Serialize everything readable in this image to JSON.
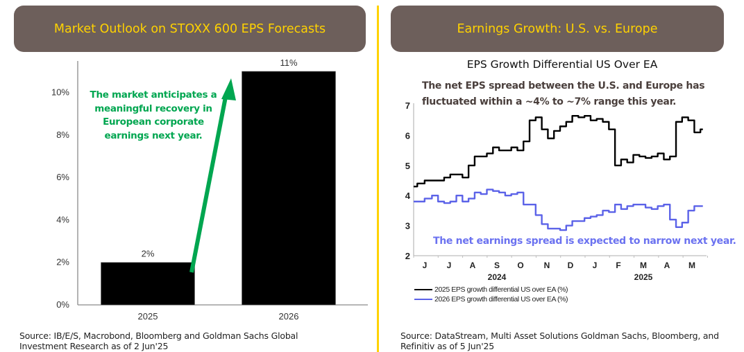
{
  "left_panel": {
    "banner_title": "Market Outlook on STOXX 600 EPS Forecasts",
    "annotation": "The market anticipates a meaningful recovery in European corporate earnings next year.",
    "source": "Source: IB/E/S, Macrobond, Bloomberg and Goldman Sachs Global Investment Research as of 2 Jun'25"
  },
  "right_panel": {
    "banner_title": "Earnings Growth: U.S. vs. Europe",
    "annotation_top": "The net EPS spread between the U.S. and Europe has fluctuated within a ~4% to ~7% range this year.",
    "annotation_bottom": "The net earnings spread is expected to narrow next year.",
    "source": "Source: DataStream, Multi Asset Solutions Goldman Sachs, Bloomberg, and Refinitiv as of 5 Jun'25"
  },
  "colors": {
    "banner_bg": "#6d5f5b",
    "banner_text": "#ffd200",
    "divider": "#ffd200",
    "bar": "#000000",
    "arrow": "#00a650",
    "series_2025": "#000000",
    "series_2026": "#5b62e8"
  },
  "chart_data": [
    {
      "type": "bar",
      "title": "",
      "categories": [
        "2025",
        "2026"
      ],
      "values": [
        2,
        11
      ],
      "data_labels": [
        "2%",
        "11%"
      ],
      "xlabel": "",
      "ylabel": "",
      "ylim": [
        0,
        11
      ],
      "yticks": [
        0,
        2,
        4,
        6,
        8,
        10
      ],
      "ytick_labels": [
        "0%",
        "2%",
        "4%",
        "6%",
        "8%",
        "10%"
      ],
      "grid": false,
      "annotation_arrow": {
        "from": "2025",
        "to": "2026",
        "color": "#00a650"
      }
    },
    {
      "type": "line",
      "title": "EPS Growth Differential US Over EA",
      "xlabel": "",
      "ylabel": "",
      "ylim": [
        2,
        7
      ],
      "yticks": [
        2,
        3,
        4,
        5,
        6,
        7
      ],
      "xtick_labels": [
        "J",
        "J",
        "A",
        "S",
        "O",
        "N",
        "D",
        "J",
        "F",
        "M",
        "A",
        "M"
      ],
      "year_labels": [
        {
          "label": "2024",
          "under": "S"
        },
        {
          "label": "2025",
          "under": "M"
        }
      ],
      "x_range_months": [
        0,
        12
      ],
      "legend_position": "bottom-left",
      "grid": false,
      "series": [
        {
          "name": "2025 EPS growth differential US over EA (%)",
          "color": "#000000",
          "x_months": [
            0,
            0.15,
            0.45,
            0.75,
            1.0,
            1.25,
            1.5,
            1.75,
            2.0,
            2.25,
            2.5,
            2.75,
            3.0,
            3.25,
            3.5,
            3.75,
            4.0,
            4.25,
            4.5,
            4.75,
            5.0,
            5.25,
            5.5,
            5.75,
            6.0,
            6.25,
            6.5,
            6.75,
            7.0,
            7.25,
            7.5,
            7.75,
            8.0,
            8.25,
            8.5,
            8.75,
            9.0,
            9.25,
            9.5,
            9.75,
            10.0,
            10.25,
            10.5,
            10.75,
            11.0,
            11.25,
            11.5,
            11.75
          ],
          "values": [
            4.3,
            4.4,
            4.5,
            4.5,
            4.5,
            4.6,
            4.7,
            4.7,
            4.6,
            5.0,
            5.3,
            5.3,
            5.4,
            5.6,
            5.5,
            5.5,
            5.6,
            5.5,
            5.8,
            6.5,
            6.6,
            6.2,
            5.9,
            6.15,
            6.3,
            6.45,
            6.65,
            6.6,
            6.65,
            6.5,
            6.55,
            6.45,
            6.2,
            5.0,
            5.2,
            5.1,
            5.35,
            5.3,
            5.25,
            5.3,
            5.4,
            5.2,
            5.3,
            6.45,
            6.6,
            6.5,
            6.1,
            6.2
          ]
        },
        {
          "name": "2026 EPS growth differential US over EA (%)",
          "color": "#5b62e8",
          "x_months": [
            0,
            0.15,
            0.45,
            0.75,
            1.0,
            1.25,
            1.5,
            1.75,
            2.0,
            2.25,
            2.5,
            2.75,
            3.0,
            3.25,
            3.5,
            3.75,
            4.0,
            4.25,
            4.5,
            4.75,
            5.0,
            5.25,
            5.5,
            5.75,
            6.0,
            6.25,
            6.5,
            6.75,
            7.0,
            7.25,
            7.5,
            7.75,
            8.0,
            8.25,
            8.5,
            8.75,
            9.0,
            9.25,
            9.5,
            9.75,
            10.0,
            10.25,
            10.5,
            10.75,
            11.0,
            11.25,
            11.5,
            11.75
          ],
          "values": [
            3.8,
            3.8,
            3.9,
            4.0,
            3.8,
            3.75,
            3.8,
            4.0,
            3.8,
            3.9,
            4.1,
            4.05,
            4.2,
            4.15,
            4.1,
            4.0,
            4.05,
            4.1,
            3.7,
            3.7,
            3.35,
            3.05,
            2.9,
            2.9,
            2.85,
            3.0,
            3.15,
            3.15,
            3.25,
            3.3,
            3.35,
            3.5,
            3.45,
            3.7,
            3.55,
            3.65,
            3.7,
            3.7,
            3.6,
            3.55,
            3.65,
            3.7,
            3.2,
            2.95,
            3.1,
            3.5,
            3.65,
            3.65
          ]
        }
      ]
    }
  ]
}
